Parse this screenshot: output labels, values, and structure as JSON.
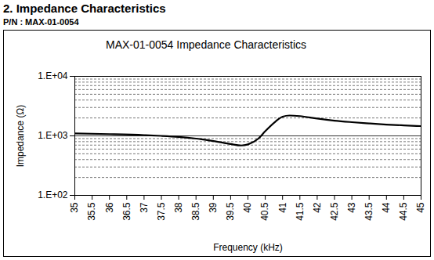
{
  "page": {
    "heading": "2. Impedance Characteristics",
    "part_number": "P/N : MAX-01-0054"
  },
  "chart_data": {
    "type": "line",
    "title": "MAX-01-0054 Impedance Characteristics",
    "x_label": "Frequency (kHz)",
    "y_label": "Impedance (Ω)",
    "x": [
      35,
      36,
      37,
      37.5,
      38,
      38.5,
      39,
      39.5,
      39.8,
      40,
      40.3,
      40.5,
      40.8,
      41,
      41.2,
      41.5,
      42,
      42.5,
      43,
      43.5,
      44,
      44.5,
      45
    ],
    "values": [
      1100,
      1070,
      1030,
      1000,
      960,
      900,
      820,
      730,
      690,
      720,
      900,
      1200,
      1750,
      2100,
      2200,
      2150,
      1950,
      1800,
      1700,
      1620,
      1550,
      1500,
      1460
    ],
    "color": "#000000",
    "xlim": [
      35,
      45
    ],
    "xticks": [
      35,
      35.5,
      36,
      36.5,
      37,
      37.5,
      38,
      38.5,
      39,
      39.5,
      40,
      40.5,
      41,
      41.5,
      42,
      42.5,
      43,
      43.5,
      44,
      44.5,
      45
    ],
    "ylim": [
      100,
      10000
    ],
    "yticks": [
      {
        "value": 100,
        "label": "1.E+02"
      },
      {
        "value": 1000,
        "label": "1.E+03"
      },
      {
        "value": 10000,
        "label": "1.E+04"
      }
    ],
    "log": "y",
    "grid": true
  }
}
